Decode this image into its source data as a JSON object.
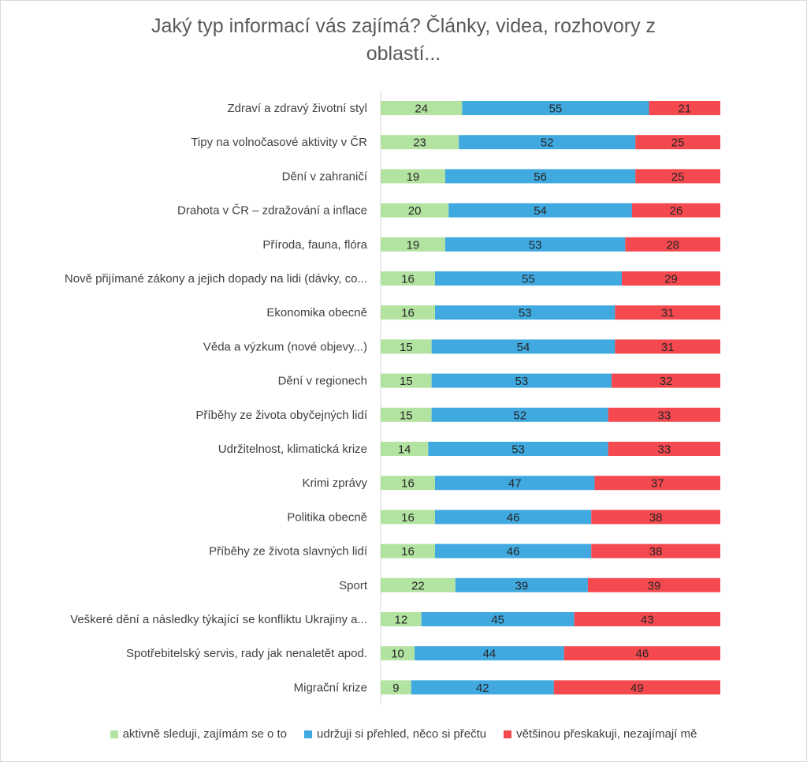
{
  "chart_data": {
    "type": "bar",
    "orientation": "horizontal",
    "stacked": true,
    "title": "Jaký typ informací vás zajímá? Články, videa, rozhovory z\noblastí...",
    "xlabel": "",
    "ylabel": "",
    "xlim": [
      0,
      100
    ],
    "categories": [
      "Zdraví a zdravý životní styl",
      "Tipy na volnočasové aktivity v ČR",
      "Dění v zahraničí",
      "Drahota v ČR – zdražování a inflace",
      "Příroda, fauna, flóra",
      "Nově přijímané zákony a jejich dopady na lidi (dávky, co...",
      "Ekonomika obecně",
      "Věda a výzkum (nové objevy...)",
      "Dění v regionech",
      "Příběhy ze života obyčejných lidí",
      "Udržitelnost, klimatická krize",
      "Krimi zprávy",
      "Politika obecně",
      "Příběhy ze života slavných lidí",
      "Sport",
      "Veškeré dění a následky týkající se konfliktu Ukrajiny a...",
      "Spotřebitelský servis, rady jak nenaletět apod.",
      "Migrační krize"
    ],
    "series": [
      {
        "name": "aktivně sleduji, zajímám se o to",
        "color": "#b3e3a1",
        "values": [
          24,
          23,
          19,
          20,
          19,
          16,
          16,
          15,
          15,
          15,
          14,
          16,
          16,
          16,
          22,
          12,
          10,
          9
        ]
      },
      {
        "name": "udržuji si přehled, něco si přečtu",
        "color": "#3fa9e0",
        "values": [
          55,
          52,
          56,
          54,
          53,
          55,
          53,
          54,
          53,
          52,
          53,
          47,
          46,
          46,
          39,
          45,
          44,
          42
        ]
      },
      {
        "name": "většinou přeskakuji, nezajímají mě",
        "color": "#f4494e",
        "values": [
          21,
          25,
          25,
          26,
          28,
          29,
          31,
          31,
          32,
          33,
          33,
          37,
          38,
          38,
          39,
          43,
          46,
          49
        ]
      }
    ],
    "legend_position": "bottom",
    "grid": false,
    "data_labels": true
  }
}
